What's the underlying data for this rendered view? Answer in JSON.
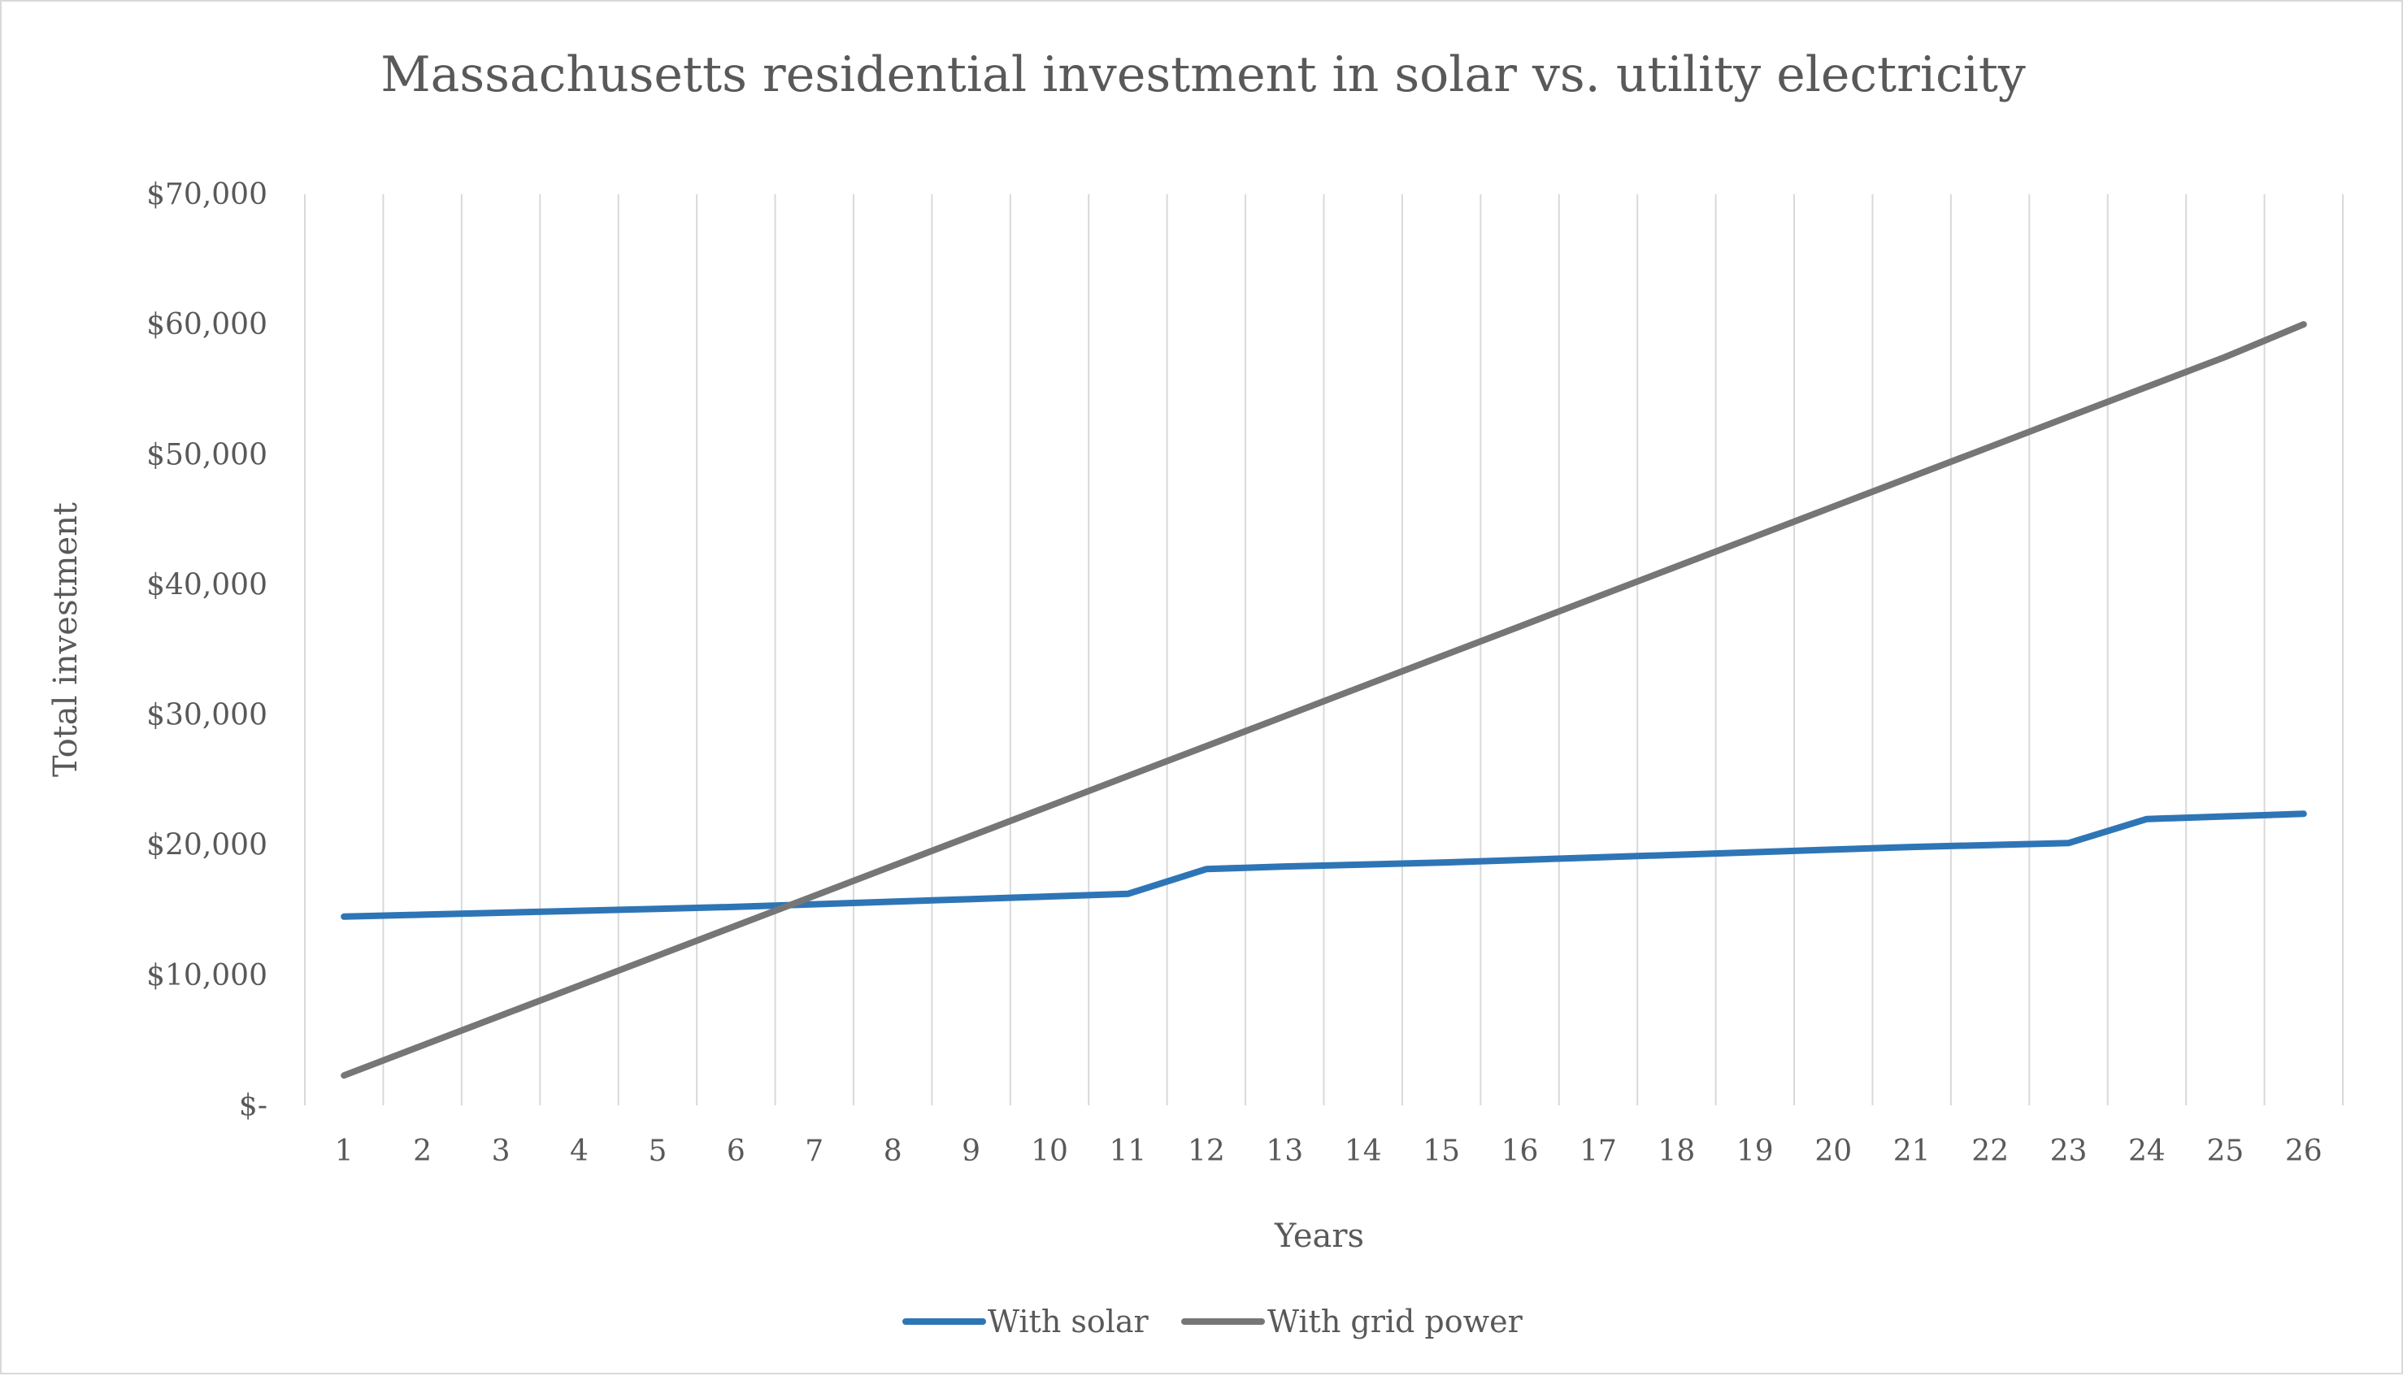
{
  "chart_data": {
    "type": "line",
    "title": "Massachusetts residential investment in solar vs. utility electricity",
    "xlabel": "Years",
    "ylabel": "Total investment",
    "categories": [
      "1",
      "2",
      "3",
      "4",
      "5",
      "6",
      "7",
      "8",
      "9",
      "10",
      "11",
      "12",
      "13",
      "14",
      "15",
      "16",
      "17",
      "18",
      "19",
      "20",
      "21",
      "22",
      "23",
      "24",
      "25",
      "26"
    ],
    "y_ticks": [
      "$-",
      "$10,000",
      "$20,000",
      "$30,000",
      "$40,000",
      "$50,000",
      "$60,000",
      "$70,000"
    ],
    "ylim": [
      0,
      70000
    ],
    "grid": "vertical",
    "legend_position": "bottom",
    "series": [
      {
        "name": "With solar",
        "color": "#2e75b6",
        "values": [
          14500,
          14650,
          14800,
          14950,
          15100,
          15250,
          15450,
          15650,
          15850,
          16050,
          16250,
          18150,
          18350,
          18500,
          18650,
          18850,
          19050,
          19250,
          19450,
          19650,
          19850,
          20000,
          20150,
          22000,
          22200,
          22400
        ]
      },
      {
        "name": "With grid power",
        "color": "#767676",
        "values": [
          2300,
          4600,
          6900,
          9200,
          11500,
          13800,
          16100,
          18400,
          20700,
          23000,
          25300,
          27600,
          29900,
          32200,
          34500,
          36800,
          39100,
          41400,
          43700,
          46000,
          48300,
          50600,
          52900,
          55200,
          57500,
          60000
        ]
      }
    ]
  }
}
